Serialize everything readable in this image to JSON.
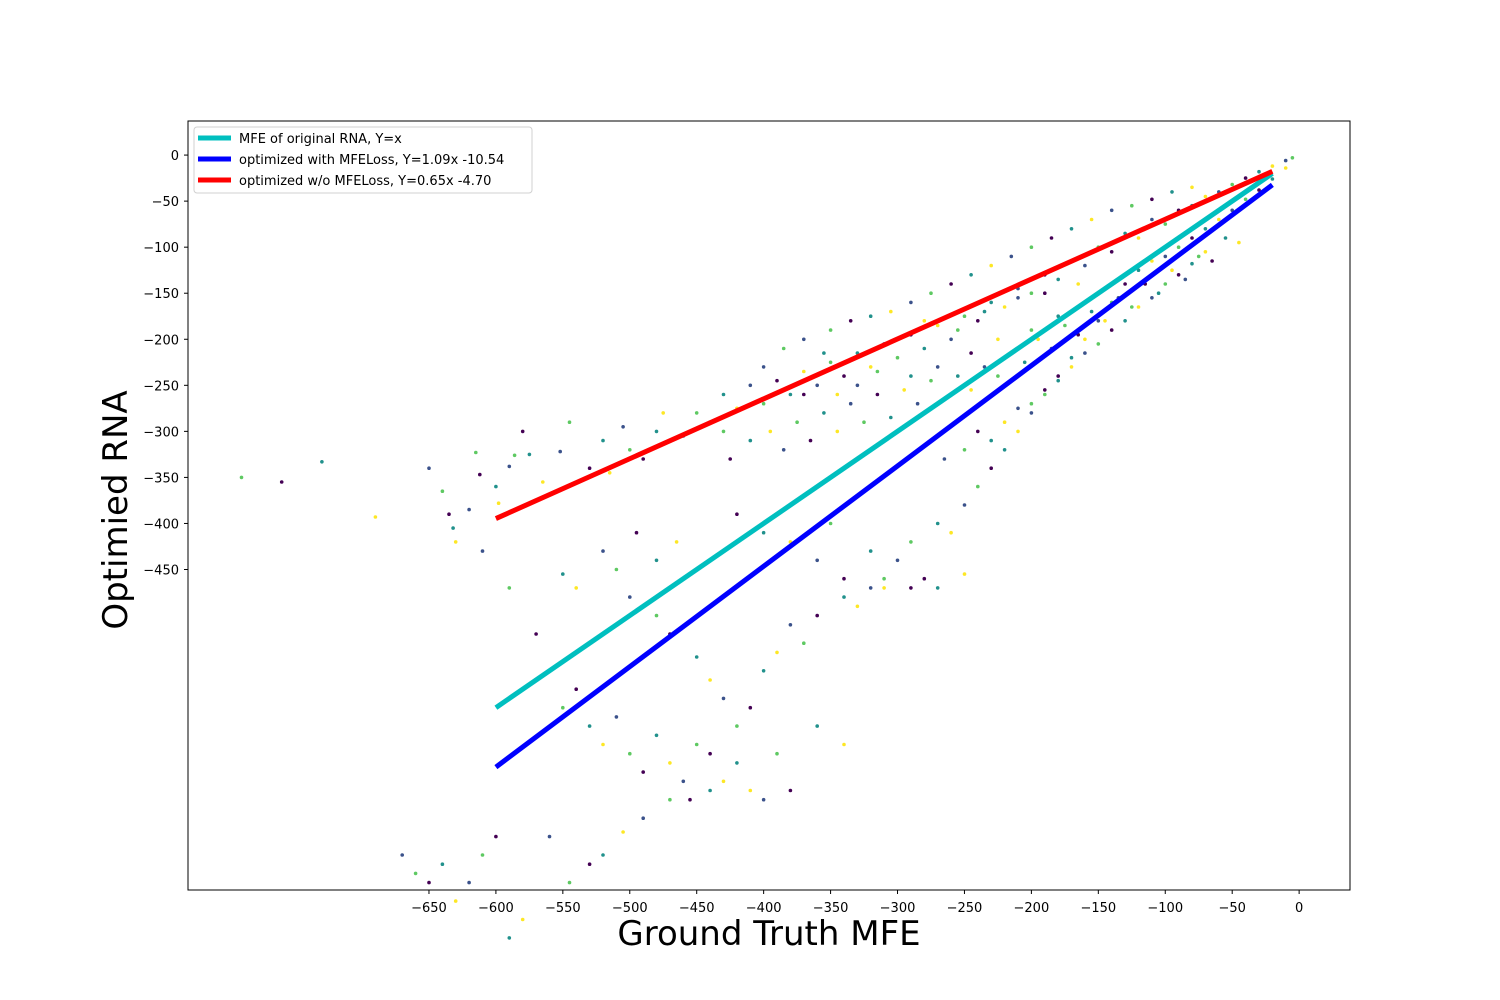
{
  "chart_data": {
    "type": "scatter",
    "xlabel": "Ground Truth MFE",
    "ylabel": "Optimied RNA",
    "x_ticks": [
      -650,
      -600,
      -550,
      -500,
      -450,
      -400,
      -350,
      -300,
      -250,
      -200,
      -150,
      -100,
      -50,
      0
    ],
    "y_ticks": [
      0,
      -50,
      -100,
      -150,
      -200,
      -250,
      -300,
      -350,
      -400,
      -450
    ],
    "xlim": [
      -830,
      38
    ],
    "ylim": [
      -798,
      37
    ],
    "grid": false,
    "legend_position": "top-left",
    "point_colors": [
      "#440154",
      "#3b528b",
      "#21918c",
      "#5ec962",
      "#fde725"
    ],
    "series": [
      {
        "name": "MFE of original RNA, Y=x",
        "kind": "line",
        "color": "#00bfbf",
        "slope": 1.0,
        "intercept": 0.0,
        "x_range": [
          -600,
          -20
        ]
      },
      {
        "name": "optimized with MFELoss, Y=1.09x -10.54",
        "kind": "line",
        "color": "#0000ff",
        "slope": 1.09,
        "intercept": -10.54,
        "x_range": [
          -600,
          -20
        ]
      },
      {
        "name": "optimized w/o MFELoss, Y=0.65x -4.70",
        "kind": "line",
        "color": "#ff0000",
        "slope": 0.65,
        "intercept": -4.7,
        "x_range": [
          -600,
          -20
        ]
      }
    ],
    "scatter_points": [
      [
        -790,
        -350
      ],
      [
        -760,
        -355
      ],
      [
        -730,
        -333
      ],
      [
        -690,
        -393
      ],
      [
        -650,
        -340
      ],
      [
        -640,
        -365
      ],
      [
        -635,
        -390
      ],
      [
        -632,
        -405
      ],
      [
        -630,
        -420
      ],
      [
        -620,
        -385
      ],
      [
        -615,
        -323
      ],
      [
        -612,
        -347
      ],
      [
        -600,
        -360
      ],
      [
        -598,
        -378
      ],
      [
        -590,
        -338
      ],
      [
        -586,
        -326
      ],
      [
        -580,
        -300
      ],
      [
        -575,
        -325
      ],
      [
        -565,
        -355
      ],
      [
        -552,
        -322
      ],
      [
        -545,
        -290
      ],
      [
        -530,
        -340
      ],
      [
        -520,
        -310
      ],
      [
        -515,
        -345
      ],
      [
        -505,
        -295
      ],
      [
        -500,
        -320
      ],
      [
        -490,
        -330
      ],
      [
        -480,
        -300
      ],
      [
        -475,
        -280
      ],
      [
        -460,
        -305
      ],
      [
        -450,
        -280
      ],
      [
        -440,
        -290
      ],
      [
        -430,
        -260
      ],
      [
        -420,
        -275
      ],
      [
        -410,
        -250
      ],
      [
        -400,
        -270
      ],
      [
        -390,
        -245
      ],
      [
        -380,
        -260
      ],
      [
        -370,
        -235
      ],
      [
        -360,
        -250
      ],
      [
        -350,
        -225
      ],
      [
        -340,
        -240
      ],
      [
        -330,
        -215
      ],
      [
        -320,
        -230
      ],
      [
        -310,
        -205
      ],
      [
        -300,
        -220
      ],
      [
        -290,
        -195
      ],
      [
        -280,
        -210
      ],
      [
        -270,
        -185
      ],
      [
        -260,
        -200
      ],
      [
        -250,
        -175
      ],
      [
        -240,
        -180
      ],
      [
        -230,
        -160
      ],
      [
        -220,
        -165
      ],
      [
        -210,
        -145
      ],
      [
        -200,
        -150
      ],
      [
        -190,
        -130
      ],
      [
        -180,
        -135
      ],
      [
        -170,
        -115
      ],
      [
        -160,
        -120
      ],
      [
        -150,
        -100
      ],
      [
        -140,
        -105
      ],
      [
        -130,
        -85
      ],
      [
        -120,
        -90
      ],
      [
        -110,
        -70
      ],
      [
        -100,
        -75
      ],
      [
        -90,
        -60
      ],
      [
        -80,
        -55
      ],
      [
        -70,
        -45
      ],
      [
        -60,
        -40
      ],
      [
        -50,
        -32
      ],
      [
        -40,
        -25
      ],
      [
        -30,
        -18
      ],
      [
        -20,
        -12
      ],
      [
        -10,
        -6
      ],
      [
        -5,
        -3
      ],
      [
        -420,
        -390
      ],
      [
        -400,
        -410
      ],
      [
        -380,
        -420
      ],
      [
        -360,
        -440
      ],
      [
        -350,
        -400
      ],
      [
        -340,
        -460
      ],
      [
        -320,
        -430
      ],
      [
        -310,
        -470
      ],
      [
        -300,
        -440
      ],
      [
        -290,
        -420
      ],
      [
        -280,
        -460
      ],
      [
        -270,
        -400
      ],
      [
        -260,
        -410
      ],
      [
        -250,
        -380
      ],
      [
        -240,
        -360
      ],
      [
        -230,
        -340
      ],
      [
        -220,
        -320
      ],
      [
        -210,
        -300
      ],
      [
        -200,
        -280
      ],
      [
        -190,
        -260
      ],
      [
        -180,
        -240
      ],
      [
        -170,
        -220
      ],
      [
        -160,
        -200
      ],
      [
        -150,
        -180
      ],
      [
        -140,
        -160
      ],
      [
        -130,
        -140
      ],
      [
        -120,
        -125
      ],
      [
        -110,
        -115
      ],
      [
        -100,
        -110
      ],
      [
        -90,
        -100
      ],
      [
        -80,
        -90
      ],
      [
        -70,
        -80
      ],
      [
        -60,
        -70
      ],
      [
        -50,
        -60
      ],
      [
        -40,
        -48
      ],
      [
        -30,
        -38
      ],
      [
        -20,
        -26
      ],
      [
        -10,
        -14
      ],
      [
        -500,
        -480
      ],
      [
        -480,
        -500
      ],
      [
        -470,
        -520
      ],
      [
        -450,
        -545
      ],
      [
        -440,
        -570
      ],
      [
        -430,
        -590
      ],
      [
        -420,
        -620
      ],
      [
        -410,
        -600
      ],
      [
        -400,
        -560
      ],
      [
        -390,
        -540
      ],
      [
        -380,
        -510
      ],
      [
        -370,
        -530
      ],
      [
        -360,
        -500
      ],
      [
        -340,
        -480
      ],
      [
        -330,
        -490
      ],
      [
        -320,
        -470
      ],
      [
        -310,
        -460
      ],
      [
        -290,
        -470
      ],
      [
        -270,
        -470
      ],
      [
        -250,
        -455
      ],
      [
        -560,
        -560
      ],
      [
        -550,
        -600
      ],
      [
        -540,
        -580
      ],
      [
        -530,
        -620
      ],
      [
        -520,
        -640
      ],
      [
        -510,
        -610
      ],
      [
        -500,
        -650
      ],
      [
        -490,
        -670
      ],
      [
        -480,
        -630
      ],
      [
        -470,
        -660
      ],
      [
        -460,
        -680
      ],
      [
        -450,
        -640
      ],
      [
        -440,
        -650
      ],
      [
        -420,
        -660
      ],
      [
        -410,
        -690
      ],
      [
        -400,
        -700
      ],
      [
        -390,
        -650
      ],
      [
        -380,
        -690
      ],
      [
        -360,
        -620
      ],
      [
        -340,
        -640
      ],
      [
        -670,
        -760
      ],
      [
        -660,
        -780
      ],
      [
        -650,
        -790
      ],
      [
        -640,
        -770
      ],
      [
        -630,
        -810
      ],
      [
        -620,
        -790
      ],
      [
        -610,
        -760
      ],
      [
        -600,
        -740
      ],
      [
        -590,
        -850
      ],
      [
        -580,
        -830
      ],
      [
        -560,
        -740
      ],
      [
        -545,
        -790
      ],
      [
        -530,
        -770
      ],
      [
        -520,
        -760
      ],
      [
        -505,
        -735
      ],
      [
        -490,
        -720
      ],
      [
        -470,
        -700
      ],
      [
        -455,
        -700
      ],
      [
        -440,
        -690
      ],
      [
        -430,
        -680
      ],
      [
        -610,
        -430
      ],
      [
        -590,
        -470
      ],
      [
        -570,
        -520
      ],
      [
        -550,
        -455
      ],
      [
        -540,
        -470
      ],
      [
        -520,
        -430
      ],
      [
        -510,
        -450
      ],
      [
        -495,
        -410
      ],
      [
        -480,
        -440
      ],
      [
        -465,
        -420
      ],
      [
        -370,
        -200
      ],
      [
        -350,
        -190
      ],
      [
        -335,
        -180
      ],
      [
        -320,
        -175
      ],
      [
        -305,
        -170
      ],
      [
        -290,
        -160
      ],
      [
        -275,
        -150
      ],
      [
        -260,
        -140
      ],
      [
        -245,
        -130
      ],
      [
        -230,
        -120
      ],
      [
        -215,
        -110
      ],
      [
        -200,
        -100
      ],
      [
        -185,
        -90
      ],
      [
        -170,
        -80
      ],
      [
        -155,
        -70
      ],
      [
        -140,
        -60
      ],
      [
        -125,
        -55
      ],
      [
        -110,
        -48
      ],
      [
        -95,
        -40
      ],
      [
        -80,
        -35
      ],
      [
        -440,
        -290
      ],
      [
        -430,
        -300
      ],
      [
        -425,
        -330
      ],
      [
        -410,
        -310
      ],
      [
        -395,
        -300
      ],
      [
        -385,
        -320
      ],
      [
        -375,
        -290
      ],
      [
        -365,
        -310
      ],
      [
        -355,
        -280
      ],
      [
        -345,
        -300
      ],
      [
        -335,
        -270
      ],
      [
        -325,
        -290
      ],
      [
        -315,
        -260
      ],
      [
        -305,
        -285
      ],
      [
        -295,
        -255
      ],
      [
        -285,
        -270
      ],
      [
        -275,
        -245
      ],
      [
        -265,
        -265
      ],
      [
        -255,
        -240
      ],
      [
        -245,
        -255
      ],
      [
        -235,
        -230
      ],
      [
        -225,
        -240
      ],
      [
        -215,
        -215
      ],
      [
        -205,
        -225
      ],
      [
        -195,
        -200
      ],
      [
        -185,
        -210
      ],
      [
        -175,
        -185
      ],
      [
        -165,
        -195
      ],
      [
        -155,
        -170
      ],
      [
        -145,
        -180
      ],
      [
        -135,
        -155
      ],
      [
        -125,
        -165
      ],
      [
        -115,
        -140
      ],
      [
        -105,
        -150
      ],
      [
        -95,
        -125
      ],
      [
        -85,
        -135
      ],
      [
        -75,
        -110
      ],
      [
        -65,
        -115
      ],
      [
        -55,
        -90
      ],
      [
        -45,
        -95
      ],
      [
        -400,
        -230
      ],
      [
        -385,
        -210
      ],
      [
        -370,
        -260
      ],
      [
        -355,
        -215
      ],
      [
        -345,
        -260
      ],
      [
        -330,
        -250
      ],
      [
        -315,
        -235
      ],
      [
        -300,
        -200
      ],
      [
        -290,
        -240
      ],
      [
        -280,
        -180
      ],
      [
        -270,
        -230
      ],
      [
        -255,
        -190
      ],
      [
        -245,
        -215
      ],
      [
        -235,
        -170
      ],
      [
        -225,
        -200
      ],
      [
        -210,
        -155
      ],
      [
        -200,
        -190
      ],
      [
        -190,
        -150
      ],
      [
        -180,
        -175
      ],
      [
        -165,
        -140
      ],
      [
        -265,
        -330
      ],
      [
        -250,
        -320
      ],
      [
        -240,
        -300
      ],
      [
        -230,
        -310
      ],
      [
        -220,
        -290
      ],
      [
        -210,
        -275
      ],
      [
        -200,
        -270
      ],
      [
        -190,
        -255
      ],
      [
        -180,
        -245
      ],
      [
        -170,
        -230
      ],
      [
        -160,
        -215
      ],
      [
        -150,
        -205
      ],
      [
        -140,
        -190
      ],
      [
        -130,
        -180
      ],
      [
        -120,
        -165
      ],
      [
        -110,
        -155
      ],
      [
        -100,
        -140
      ],
      [
        -90,
        -130
      ],
      [
        -80,
        -118
      ],
      [
        -70,
        -105
      ]
    ]
  }
}
